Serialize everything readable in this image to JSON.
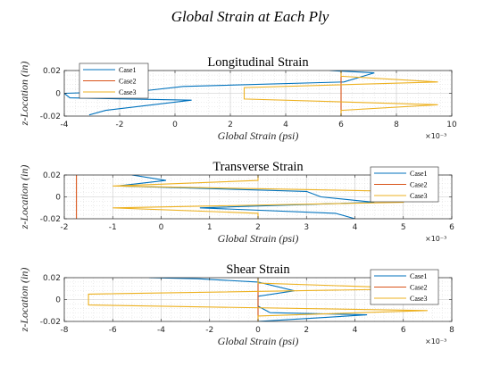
{
  "figure_title": "Global Strain at Each Ply",
  "chart_data": [
    {
      "type": "line",
      "title": "Longitudinal Strain",
      "xlabel": "Global Strain (psi)",
      "ylabel": "z-Location (in)",
      "x_exponent": "×10⁻³",
      "xlim": [
        -4,
        10
      ],
      "ylim": [
        -0.02,
        0.02
      ],
      "xticks": [
        "-4",
        "-2",
        "0",
        "2",
        "4",
        "6",
        "8",
        "10"
      ],
      "yticks": [
        "-0.02",
        "0",
        "0.02"
      ],
      "grid": true,
      "legend_position": "top-left",
      "x_units_scale": 0.001,
      "series": [
        {
          "name": "Case1",
          "color": "#0072BD",
          "points": [
            [
              5.6,
              0.02
            ],
            [
              7.2,
              0.018
            ],
            [
              6.1,
              0.01
            ],
            [
              0.3,
              0.006
            ],
            [
              -1.2,
              0.002
            ],
            [
              -4.0,
              0.0
            ],
            [
              -3.8,
              -0.004
            ],
            [
              0.6,
              -0.006
            ],
            [
              -2.5,
              -0.015
            ],
            [
              -3.1,
              -0.019
            ]
          ]
        },
        {
          "name": "Case2",
          "color": "#D95319",
          "points": [
            [
              6.0,
              0.02
            ],
            [
              6.0,
              -0.02
            ]
          ]
        },
        {
          "name": "Case3",
          "color": "#EDB120",
          "points": [
            [
              6.0,
              0.02
            ],
            [
              6.0,
              0.015
            ],
            [
              9.5,
              0.01
            ],
            [
              2.5,
              0.005
            ],
            [
              2.5,
              -0.005
            ],
            [
              9.5,
              -0.01
            ],
            [
              6.0,
              -0.015
            ],
            [
              6.0,
              -0.02
            ]
          ]
        }
      ]
    },
    {
      "type": "line",
      "title": "Transverse Strain",
      "xlabel": "Global Strain (psi)",
      "ylabel": "z-Location (in)",
      "x_exponent": "×10⁻³",
      "xlim": [
        -2,
        6
      ],
      "ylim": [
        -0.02,
        0.02
      ],
      "xticks": [
        "-2",
        "-1",
        "0",
        "1",
        "2",
        "3",
        "4",
        "5",
        "6"
      ],
      "yticks": [
        "-0.02",
        "0",
        "0.02"
      ],
      "grid": true,
      "legend_position": "top-right",
      "x_units_scale": 0.001,
      "series": [
        {
          "name": "Case1",
          "color": "#0072BD",
          "points": [
            [
              -0.6,
              0.02
            ],
            [
              0.1,
              0.015
            ],
            [
              -0.9,
              0.01
            ],
            [
              3.0,
              0.005
            ],
            [
              3.3,
              0.0
            ],
            [
              4.4,
              -0.005
            ],
            [
              0.8,
              -0.01
            ],
            [
              3.6,
              -0.015
            ],
            [
              4.0,
              -0.02
            ]
          ]
        },
        {
          "name": "Case2",
          "color": "#D95319",
          "points": [
            [
              -1.75,
              0.02
            ],
            [
              -1.75,
              -0.02
            ]
          ]
        },
        {
          "name": "Case3",
          "color": "#EDB120",
          "points": [
            [
              2.0,
              0.02
            ],
            [
              2.0,
              0.015
            ],
            [
              -1.0,
              0.01
            ],
            [
              5.0,
              0.005
            ],
            [
              5.0,
              -0.005
            ],
            [
              -1.0,
              -0.01
            ],
            [
              2.0,
              -0.015
            ],
            [
              2.0,
              -0.02
            ]
          ]
        }
      ]
    },
    {
      "type": "line",
      "title": "Shear Strain",
      "xlabel": "Global Strain (psi)",
      "ylabel": "z-Location (in)",
      "x_exponent": "×10⁻³",
      "xlim": [
        -8,
        8
      ],
      "ylim": [
        -0.02,
        0.02
      ],
      "xticks": [
        "-8",
        "-6",
        "-4",
        "-2",
        "0",
        "2",
        "4",
        "6",
        "8"
      ],
      "yticks": [
        "-0.02",
        "0",
        "0.02"
      ],
      "grid": true,
      "legend_position": "top-right",
      "x_units_scale": 0.001,
      "series": [
        {
          "name": "Case1",
          "color": "#0072BD",
          "points": [
            [
              -4.5,
              0.02
            ],
            [
              -2.5,
              0.019
            ],
            [
              0.0,
              0.016
            ],
            [
              1.5,
              0.008
            ],
            [
              0.0,
              0.003
            ],
            [
              0.0,
              -0.006
            ],
            [
              0.5,
              -0.012
            ],
            [
              4.5,
              -0.014
            ],
            [
              1.5,
              -0.018
            ],
            [
              0.0,
              -0.02
            ]
          ]
        },
        {
          "name": "Case2",
          "color": "#D95319",
          "points": [
            [
              0.0,
              0.02
            ],
            [
              0.0,
              -0.02
            ]
          ]
        },
        {
          "name": "Case3",
          "color": "#EDB120",
          "points": [
            [
              0.0,
              0.02
            ],
            [
              0.0,
              0.015
            ],
            [
              7.0,
              0.01
            ],
            [
              -7.0,
              0.005
            ],
            [
              -7.0,
              -0.005
            ],
            [
              7.0,
              -0.01
            ],
            [
              0.0,
              -0.015
            ],
            [
              0.0,
              -0.02
            ]
          ]
        }
      ]
    }
  ]
}
